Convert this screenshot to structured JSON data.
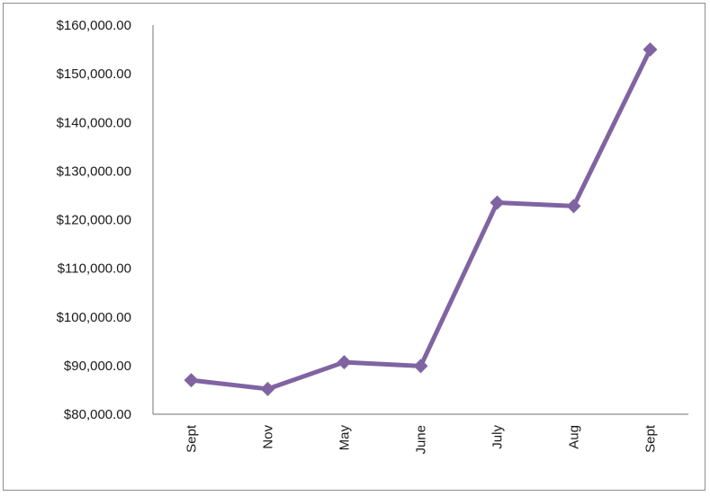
{
  "chart_data": {
    "type": "line",
    "categories": [
      "Sept",
      "Nov",
      "May",
      "June",
      "July",
      "Aug",
      "Sept"
    ],
    "series": [
      {
        "values": [
          87000,
          85200,
          90700,
          89900,
          123500,
          122800,
          155000
        ],
        "color": "#8064a2"
      }
    ],
    "y_tick_labels": [
      "$80,000.00",
      "$90,000.00",
      "$100,000.00",
      "$110,000.00",
      "$120,000.00",
      "$130,000.00",
      "$140,000.00",
      "$150,000.00",
      "$160,000.00"
    ],
    "ylim": [
      80000,
      160000
    ],
    "x_label_rotation": "vertical",
    "grid": false,
    "legend": "none",
    "marker": "diamond",
    "title": "",
    "xlabel": "",
    "ylabel": ""
  }
}
